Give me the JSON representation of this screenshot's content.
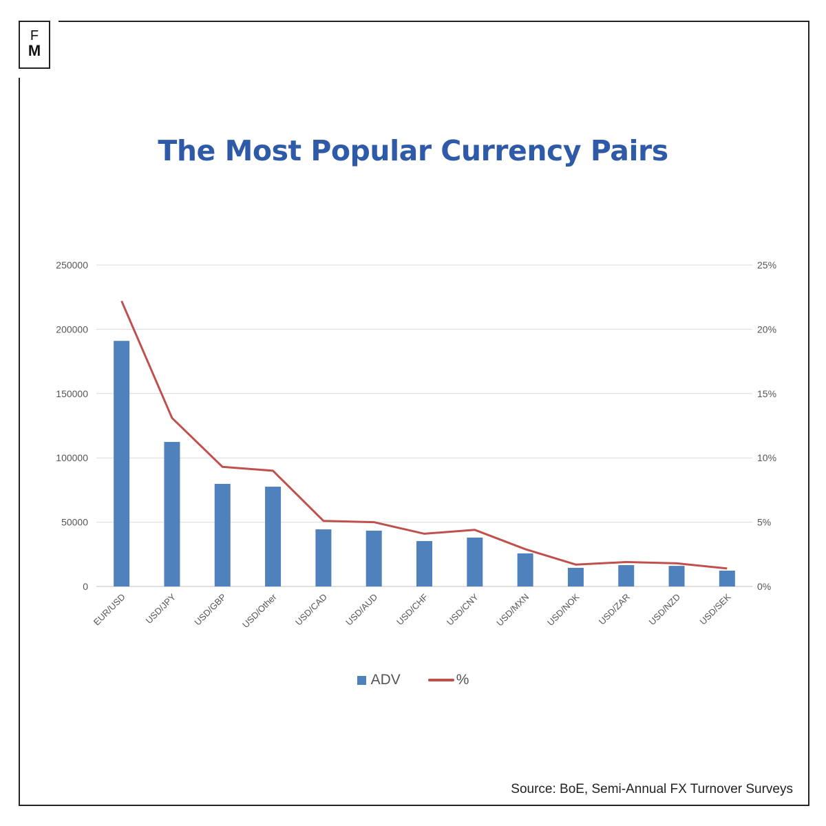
{
  "logo": {
    "top": "F",
    "bottom": "M"
  },
  "chart_data": {
    "type": "bar+line",
    "title": "The Most Popular Currency Pairs",
    "categories": [
      "EUR/USD",
      "USD/JPY",
      "USD/GBP",
      "USD/Other",
      "USD/CAD",
      "USD/AUD",
      "USD/CHF",
      "USD/CNY",
      "USD/MXN",
      "USD/NOK",
      "USD/ZAR",
      "USD/NZD",
      "USD/SEK"
    ],
    "series": [
      {
        "name": "ADV",
        "type": "bar",
        "axis": "left",
        "color": "#4f81bd",
        "values": [
          191000,
          112400,
          79800,
          77600,
          44400,
          43400,
          35300,
          38000,
          25700,
          14500,
          16600,
          16000,
          12300
        ]
      },
      {
        "name": "%",
        "type": "line",
        "axis": "right",
        "color": "#c0504d",
        "values": [
          22.2,
          13.1,
          9.3,
          9.0,
          5.1,
          5.0,
          4.1,
          4.4,
          2.9,
          1.7,
          1.9,
          1.8,
          1.4
        ]
      }
    ],
    "y_left": {
      "range": [
        0,
        250000
      ],
      "ticks": [
        "0",
        "50000",
        "100000",
        "150000",
        "200000",
        "250000"
      ]
    },
    "y_right": {
      "range": [
        0,
        25
      ],
      "ticks": [
        "0%",
        "5%",
        "10%",
        "15%",
        "20%",
        "25%"
      ]
    },
    "grid": true,
    "legend": {
      "position": "bottom",
      "items": [
        "ADV",
        "%"
      ]
    }
  },
  "source": "Source: BoE, Semi-Annual FX Turnover Surveys"
}
